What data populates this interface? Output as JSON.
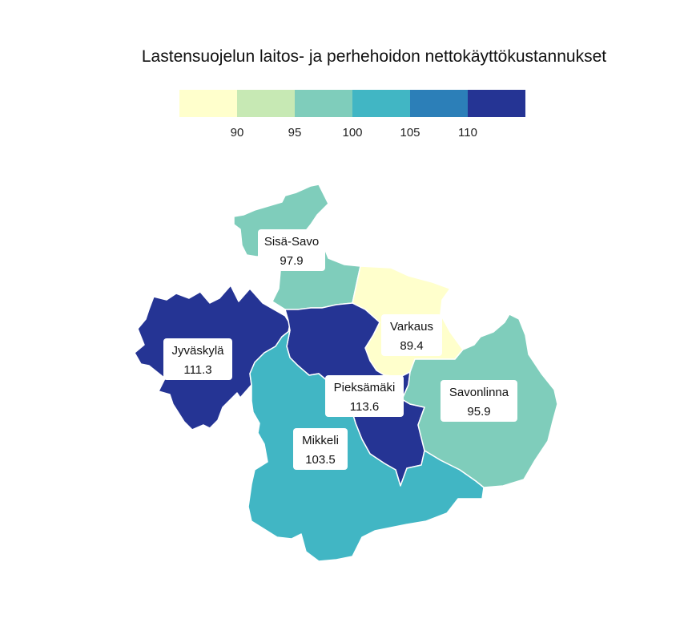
{
  "chart_data": {
    "type": "choropleth",
    "title": "Lastensuojelun laitos- ja perhehoidon nettokäyttökustannukset",
    "legend": {
      "placement": "top",
      "colors": [
        "#ffffcc",
        "#c7e9b4",
        "#7fcdbb",
        "#41b6c4",
        "#2c7fb8",
        "#253494"
      ],
      "tick_labels": [
        "90",
        "95",
        "100",
        "105",
        "110"
      ]
    },
    "regions": [
      {
        "name": "Sisä-Savo",
        "value": "97.9",
        "color": "#7fcdbb"
      },
      {
        "name": "Varkaus",
        "value": "89.4",
        "color": "#ffffcc"
      },
      {
        "name": "Jyväskylä",
        "value": "111.3",
        "color": "#253494"
      },
      {
        "name": "Pieksämäki",
        "value": "113.6",
        "color": "#253494"
      },
      {
        "name": "Savonlinna",
        "value": "95.9",
        "color": "#7fcdbb"
      },
      {
        "name": "Mikkeli",
        "value": "103.5",
        "color": "#41b6c4"
      }
    ]
  }
}
